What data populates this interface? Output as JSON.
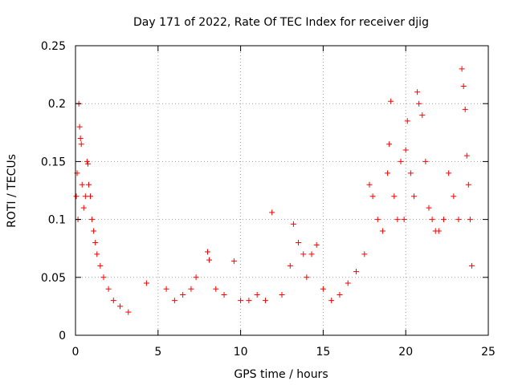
{
  "chart_data": {
    "type": "scatter",
    "title": "Day 171 of 2022, Rate Of TEC Index for receiver djig",
    "xlabel": "GPS time / hours",
    "ylabel": "ROTI / TECUs",
    "xlim": [
      0,
      25
    ],
    "ylim": [
      0,
      0.25
    ],
    "x_ticks": [
      0,
      5,
      10,
      15,
      20,
      25
    ],
    "y_ticks": [
      0,
      0.05,
      0.1,
      0.15,
      0.2,
      0.25
    ],
    "x_tick_labels": [
      "0",
      "5",
      "10",
      "15",
      "20",
      "25"
    ],
    "y_tick_labels": [
      "0",
      "0.05",
      "0.1",
      "0.15",
      "0.2",
      "0.25"
    ],
    "grid": true,
    "grid_style": "dotted",
    "marker": "+",
    "series_color": "#ff0000",
    "series": [
      {
        "points": [
          [
            0.05,
            0.12
          ],
          [
            0.1,
            0.14
          ],
          [
            0.2,
            0.2
          ],
          [
            0.25,
            0.18
          ],
          [
            0.3,
            0.17
          ],
          [
            0.35,
            0.165
          ],
          [
            0.15,
            0.1
          ],
          [
            0.4,
            0.13
          ],
          [
            0.5,
            0.11
          ],
          [
            0.6,
            0.12
          ],
          [
            0.7,
            0.15
          ],
          [
            0.75,
            0.148
          ],
          [
            0.8,
            0.13
          ],
          [
            0.9,
            0.12
          ],
          [
            1.0,
            0.1
          ],
          [
            1.1,
            0.09
          ],
          [
            1.2,
            0.08
          ],
          [
            1.3,
            0.07
          ],
          [
            1.5,
            0.06
          ],
          [
            1.7,
            0.05
          ],
          [
            2.0,
            0.04
          ],
          [
            2.3,
            0.03
          ],
          [
            2.7,
            0.025
          ],
          [
            3.2,
            0.02
          ],
          [
            4.3,
            0.045
          ],
          [
            5.5,
            0.04
          ],
          [
            6.0,
            0.03
          ],
          [
            6.5,
            0.035
          ],
          [
            7.0,
            0.04
          ],
          [
            7.3,
            0.05
          ],
          [
            8.0,
            0.072
          ],
          [
            8.1,
            0.065
          ],
          [
            8.5,
            0.04
          ],
          [
            9.0,
            0.035
          ],
          [
            9.6,
            0.064
          ],
          [
            10.0,
            0.03
          ],
          [
            10.5,
            0.03
          ],
          [
            11.0,
            0.035
          ],
          [
            11.5,
            0.03
          ],
          [
            11.9,
            0.106
          ],
          [
            12.5,
            0.035
          ],
          [
            13.0,
            0.06
          ],
          [
            13.2,
            0.096
          ],
          [
            13.5,
            0.08
          ],
          [
            13.8,
            0.07
          ],
          [
            14.0,
            0.05
          ],
          [
            14.3,
            0.07
          ],
          [
            14.6,
            0.078
          ],
          [
            15.0,
            0.04
          ],
          [
            15.5,
            0.03
          ],
          [
            16.0,
            0.035
          ],
          [
            16.5,
            0.045
          ],
          [
            17.0,
            0.055
          ],
          [
            17.5,
            0.07
          ],
          [
            17.8,
            0.13
          ],
          [
            18.0,
            0.12
          ],
          [
            18.3,
            0.1
          ],
          [
            18.6,
            0.09
          ],
          [
            18.9,
            0.14
          ],
          [
            19.0,
            0.165
          ],
          [
            19.1,
            0.202
          ],
          [
            19.3,
            0.12
          ],
          [
            19.5,
            0.1
          ],
          [
            19.7,
            0.15
          ],
          [
            19.9,
            0.1
          ],
          [
            20.0,
            0.16
          ],
          [
            20.1,
            0.185
          ],
          [
            20.3,
            0.14
          ],
          [
            20.5,
            0.12
          ],
          [
            20.7,
            0.21
          ],
          [
            20.8,
            0.2
          ],
          [
            21.0,
            0.19
          ],
          [
            21.2,
            0.15
          ],
          [
            21.4,
            0.11
          ],
          [
            21.6,
            0.1
          ],
          [
            21.8,
            0.09
          ],
          [
            22.0,
            0.09
          ],
          [
            22.3,
            0.1
          ],
          [
            22.6,
            0.14
          ],
          [
            22.9,
            0.12
          ],
          [
            23.2,
            0.1
          ],
          [
            23.4,
            0.23
          ],
          [
            23.5,
            0.215
          ],
          [
            23.6,
            0.195
          ],
          [
            23.7,
            0.155
          ],
          [
            23.8,
            0.13
          ],
          [
            23.9,
            0.1
          ],
          [
            24.0,
            0.06
          ]
        ]
      }
    ]
  }
}
